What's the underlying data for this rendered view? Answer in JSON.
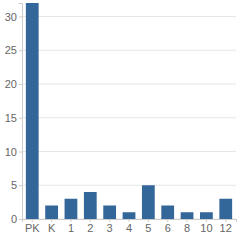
{
  "chart_data": {
    "type": "bar",
    "categories": [
      "PK",
      "K",
      "1",
      "2",
      "3",
      "4",
      "5",
      "6",
      "8",
      "10",
      "12"
    ],
    "values": [
      32,
      2,
      3,
      4,
      2,
      1,
      5,
      2,
      1,
      1,
      3
    ],
    "color": "#336699",
    "ylim": [
      0,
      32
    ],
    "yticks": [
      0,
      5,
      10,
      15,
      20,
      25,
      30
    ],
    "grid": true
  }
}
